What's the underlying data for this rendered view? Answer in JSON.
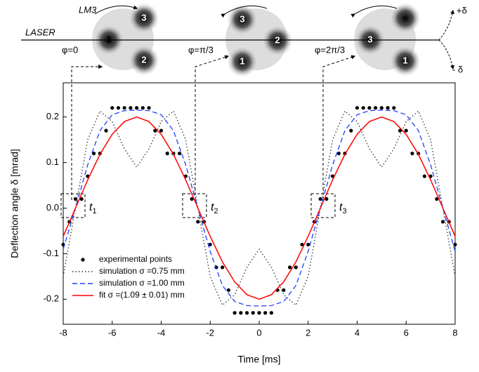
{
  "diagram": {
    "laser": "LASER",
    "lm": "LM3",
    "phases": [
      "φ=0",
      "φ=π/3",
      "φ=2π/3"
    ],
    "disk_labels": [
      [
        "1",
        "3",
        "2"
      ],
      [
        "3",
        "2",
        "1"
      ],
      [
        "3",
        "1"
      ]
    ],
    "plus": "+δ",
    "minus": "- δ"
  },
  "chart_data": {
    "type": "line",
    "xlabel": "Time [ms]",
    "ylabel": "Deflection angle δ [mrad]",
    "xlim": [
      -8,
      8
    ],
    "ylim": [
      -0.255,
      0.275
    ],
    "xticks": [
      -8,
      -6,
      -4,
      -2,
      0,
      2,
      4,
      6,
      8
    ],
    "yticks": [
      -0.2,
      -0.1,
      {
        "value": 0,
        "label": "0.0"
      },
      0.1,
      0.2
    ],
    "legend": "lower left",
    "annotations": [
      {
        "text": "t",
        "sub": "1"
      },
      {
        "text": "t",
        "sub": "2"
      },
      {
        "text": "t",
        "sub": "3"
      }
    ],
    "series": [
      {
        "name": "experimental points",
        "style": "points",
        "color": "#000000",
        "x": [
          -8,
          -7.75,
          -7.5,
          -7.25,
          -7,
          -6.75,
          -6.5,
          -6.25,
          -6,
          -5.75,
          -5.5,
          -5.25,
          -5,
          -4.75,
          -4.5,
          -4.25,
          -4,
          -3.75,
          -3.5,
          -3.25,
          -3,
          -2.75,
          -2.5,
          -2.25,
          -2,
          -1.75,
          -1.5,
          -1.25,
          -1,
          -0.75,
          -0.5,
          -0.25,
          0,
          0.25,
          0.5,
          0.75,
          1,
          1.25,
          1.5,
          1.75,
          2,
          2.25,
          2.5,
          2.75,
          3,
          3.25,
          3.5,
          3.75,
          4,
          4.25,
          4.5,
          4.75,
          5,
          5.25,
          5.5,
          5.75,
          6,
          6.25,
          6.5,
          6.75,
          7,
          7.25,
          7.5,
          7.75,
          8
        ],
        "values": [
          -0.08,
          -0.03,
          0.02,
          0.02,
          0.07,
          0.12,
          0.12,
          0.17,
          0.22,
          0.22,
          0.22,
          0.22,
          0.22,
          0.22,
          0.22,
          0.17,
          0.17,
          0.12,
          0.12,
          0.12,
          0.07,
          0.02,
          -0.03,
          -0.03,
          -0.08,
          -0.13,
          -0.13,
          -0.18,
          -0.23,
          -0.23,
          -0.23,
          -0.23,
          -0.23,
          -0.23,
          -0.23,
          -0.18,
          -0.18,
          -0.13,
          -0.13,
          -0.08,
          -0.08,
          -0.03,
          0.02,
          0.02,
          0.07,
          0.12,
          0.12,
          0.17,
          0.22,
          0.22,
          0.22,
          0.22,
          0.22,
          0.22,
          0.22,
          0.17,
          0.17,
          0.12,
          0.12,
          0.07,
          0.07,
          0.02,
          -0.03,
          -0.03,
          -0.08
        ]
      },
      {
        "name": "simulation σ =0.75 mm",
        "style": "dotted",
        "color": "#333333",
        "x": [
          -8,
          -7.5,
          -7,
          -6.5,
          -6,
          -5.5,
          -5,
          -4.5,
          -4,
          -3.5,
          -3,
          -2.5,
          -2,
          -1.5,
          -1,
          -0.5,
          0,
          0.5,
          1,
          1.5,
          2,
          2.5,
          3,
          3.5,
          4,
          4.5,
          5,
          5.5,
          6,
          6.5,
          7,
          7.5,
          8
        ],
        "values": [
          -0.15,
          0,
          0.15,
          0.213,
          0.19,
          0.13,
          0.09,
          0.13,
          0.19,
          0.213,
          0.15,
          0,
          -0.15,
          -0.213,
          -0.19,
          -0.13,
          -0.09,
          -0.13,
          -0.19,
          -0.213,
          -0.15,
          0,
          0.15,
          0.213,
          0.19,
          0.13,
          0.09,
          0.13,
          0.19,
          0.213,
          0.15,
          0,
          -0.15
        ]
      },
      {
        "name": "simulation σ =1.00 mm",
        "style": "dashed",
        "color": "#1f3fff",
        "x": [
          -8,
          -7.5,
          -7,
          -6.5,
          -6,
          -5.5,
          -5,
          -4.5,
          -4,
          -3.5,
          -3,
          -2.5,
          -2,
          -1.5,
          -1,
          -0.5,
          0,
          0.5,
          1,
          1.5,
          2,
          2.5,
          3,
          3.5,
          4,
          4.5,
          5,
          5.5,
          6,
          6.5,
          7,
          7.5,
          8
        ],
        "values": [
          -0.09,
          0,
          0.095,
          0.17,
          0.205,
          0.214,
          0.215,
          0.214,
          0.205,
          0.17,
          0.095,
          0,
          -0.095,
          -0.17,
          -0.205,
          -0.214,
          -0.215,
          -0.214,
          -0.205,
          -0.17,
          -0.095,
          0,
          0.095,
          0.17,
          0.205,
          0.214,
          0.215,
          0.214,
          0.205,
          0.17,
          0.095,
          0,
          -0.095
        ]
      },
      {
        "name": "fit σ =(1.09 ± 0.01) mm",
        "style": "solid",
        "color": "#ff0000",
        "x": [
          -8,
          -7.5,
          -7,
          -6.5,
          -6,
          -5.5,
          -5,
          -4.5,
          -4,
          -3.5,
          -3,
          -2.5,
          -2,
          -1.5,
          -1,
          -0.5,
          0,
          0.5,
          1,
          1.5,
          2,
          2.5,
          3,
          3.5,
          4,
          4.5,
          5,
          5.5,
          6,
          6.5,
          7,
          7.5,
          8
        ],
        "values": [
          -0.062,
          0,
          0.062,
          0.118,
          0.162,
          0.19,
          0.2,
          0.19,
          0.162,
          0.118,
          0.062,
          0,
          -0.062,
          -0.118,
          -0.162,
          -0.19,
          -0.2,
          -0.19,
          -0.162,
          -0.118,
          -0.062,
          0,
          0.062,
          0.118,
          0.162,
          0.19,
          0.2,
          0.19,
          0.162,
          0.118,
          0.062,
          0,
          -0.062
        ]
      }
    ]
  }
}
